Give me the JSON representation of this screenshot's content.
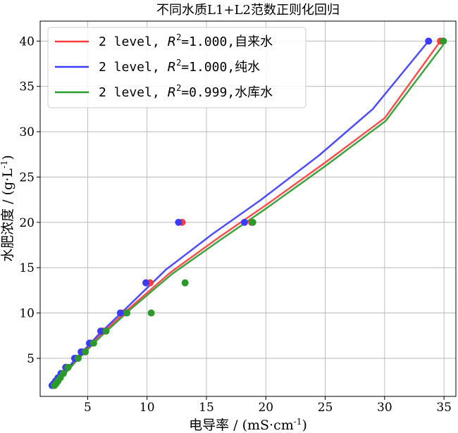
{
  "chart_data": {
    "type": "line",
    "title": "不同水质L1+L2范数正则化回归",
    "xlabel": "电导率 / (mS·cm",
    "xlabel_sup": "-1",
    "xlabel_close": ")",
    "ylabel": "水肥浓度 / (g·L",
    "ylabel_sup": "-1",
    "ylabel_close": ")",
    "xlim": [
      1.0,
      36.0
    ],
    "ylim": [
      0.8,
      42.2
    ],
    "xticks": [
      5,
      10,
      15,
      20,
      25,
      30,
      35
    ],
    "yticks": [
      5,
      10,
      15,
      20,
      25,
      30,
      35,
      40
    ],
    "grid": true,
    "legend_position": "top-left",
    "series": [
      {
        "name": "2 level, R²=1.000,自来水",
        "legend_prefix": "2 level, ",
        "legend_r": "R",
        "legend_sup": "2",
        "legend_suffix": "=1.000,自来水",
        "color": "#ff3b3b",
        "points": [
          [
            2.15,
            2.0
          ],
          [
            2.3,
            2.22
          ],
          [
            2.42,
            2.5
          ],
          [
            2.6,
            2.86
          ],
          [
            2.85,
            3.33
          ],
          [
            3.25,
            4.0
          ],
          [
            4.05,
            5.0
          ],
          [
            4.6,
            5.71
          ],
          [
            5.3,
            6.67
          ],
          [
            6.3,
            8.0
          ],
          [
            8.0,
            10.0
          ],
          [
            10.25,
            13.33
          ],
          [
            12.95,
            20.0
          ],
          [
            18.8,
            20.0
          ],
          [
            34.7,
            40.0
          ]
        ],
        "curve": [
          [
            2.05,
            2.0
          ],
          [
            2.8,
            3.0
          ],
          [
            4.0,
            4.8
          ],
          [
            6.0,
            7.5
          ],
          [
            8.5,
            10.5
          ],
          [
            12.0,
            14.5
          ],
          [
            16.0,
            18.3
          ],
          [
            20.0,
            21.9
          ],
          [
            25.0,
            26.6
          ],
          [
            30.0,
            31.5
          ],
          [
            34.7,
            40.0
          ]
        ]
      },
      {
        "name": "2 level, R²=1.000,纯水",
        "legend_prefix": "2 level, ",
        "legend_r": "R",
        "legend_sup": "2",
        "legend_suffix": "=1.000,纯水",
        "color": "#3b3bff",
        "points": [
          [
            2.0,
            2.0
          ],
          [
            2.15,
            2.22
          ],
          [
            2.3,
            2.5
          ],
          [
            2.5,
            2.86
          ],
          [
            2.75,
            3.33
          ],
          [
            3.15,
            4.0
          ],
          [
            3.9,
            5.0
          ],
          [
            4.45,
            5.71
          ],
          [
            5.15,
            6.67
          ],
          [
            6.1,
            8.0
          ],
          [
            7.75,
            10.0
          ],
          [
            9.9,
            13.33
          ],
          [
            12.65,
            20.0
          ],
          [
            18.2,
            20.0
          ],
          [
            33.7,
            40.0
          ]
        ],
        "curve": [
          [
            2.0,
            2.0
          ],
          [
            2.7,
            3.0
          ],
          [
            3.9,
            4.8
          ],
          [
            5.9,
            7.6
          ],
          [
            8.3,
            10.6
          ],
          [
            11.6,
            14.8
          ],
          [
            15.5,
            18.7
          ],
          [
            19.5,
            22.4
          ],
          [
            24.5,
            27.4
          ],
          [
            29.0,
            32.5
          ],
          [
            33.7,
            40.0
          ]
        ]
      },
      {
        "name": "2 level, R²=0.999,水库水",
        "legend_prefix": "2 level, ",
        "legend_r": "R",
        "legend_sup": "2",
        "legend_suffix": "=0.999,水库水",
        "color": "#2a9a2a",
        "points": [
          [
            2.2,
            2.0
          ],
          [
            2.35,
            2.22
          ],
          [
            2.5,
            2.5
          ],
          [
            2.7,
            2.86
          ],
          [
            2.95,
            3.33
          ],
          [
            3.35,
            4.0
          ],
          [
            4.2,
            5.0
          ],
          [
            4.8,
            5.71
          ],
          [
            5.5,
            6.67
          ],
          [
            6.55,
            8.0
          ],
          [
            8.3,
            10.0
          ],
          [
            10.35,
            10.0
          ],
          [
            13.2,
            13.33
          ],
          [
            18.9,
            20.0
          ],
          [
            34.95,
            40.0
          ]
        ],
        "curve": [
          [
            2.15,
            2.0
          ],
          [
            2.9,
            3.0
          ],
          [
            4.1,
            4.8
          ],
          [
            6.1,
            7.4
          ],
          [
            8.6,
            10.4
          ],
          [
            12.1,
            14.3
          ],
          [
            16.1,
            18.0
          ],
          [
            20.1,
            21.6
          ],
          [
            25.1,
            26.3
          ],
          [
            30.1,
            31.2
          ],
          [
            34.95,
            39.6
          ]
        ]
      }
    ]
  }
}
